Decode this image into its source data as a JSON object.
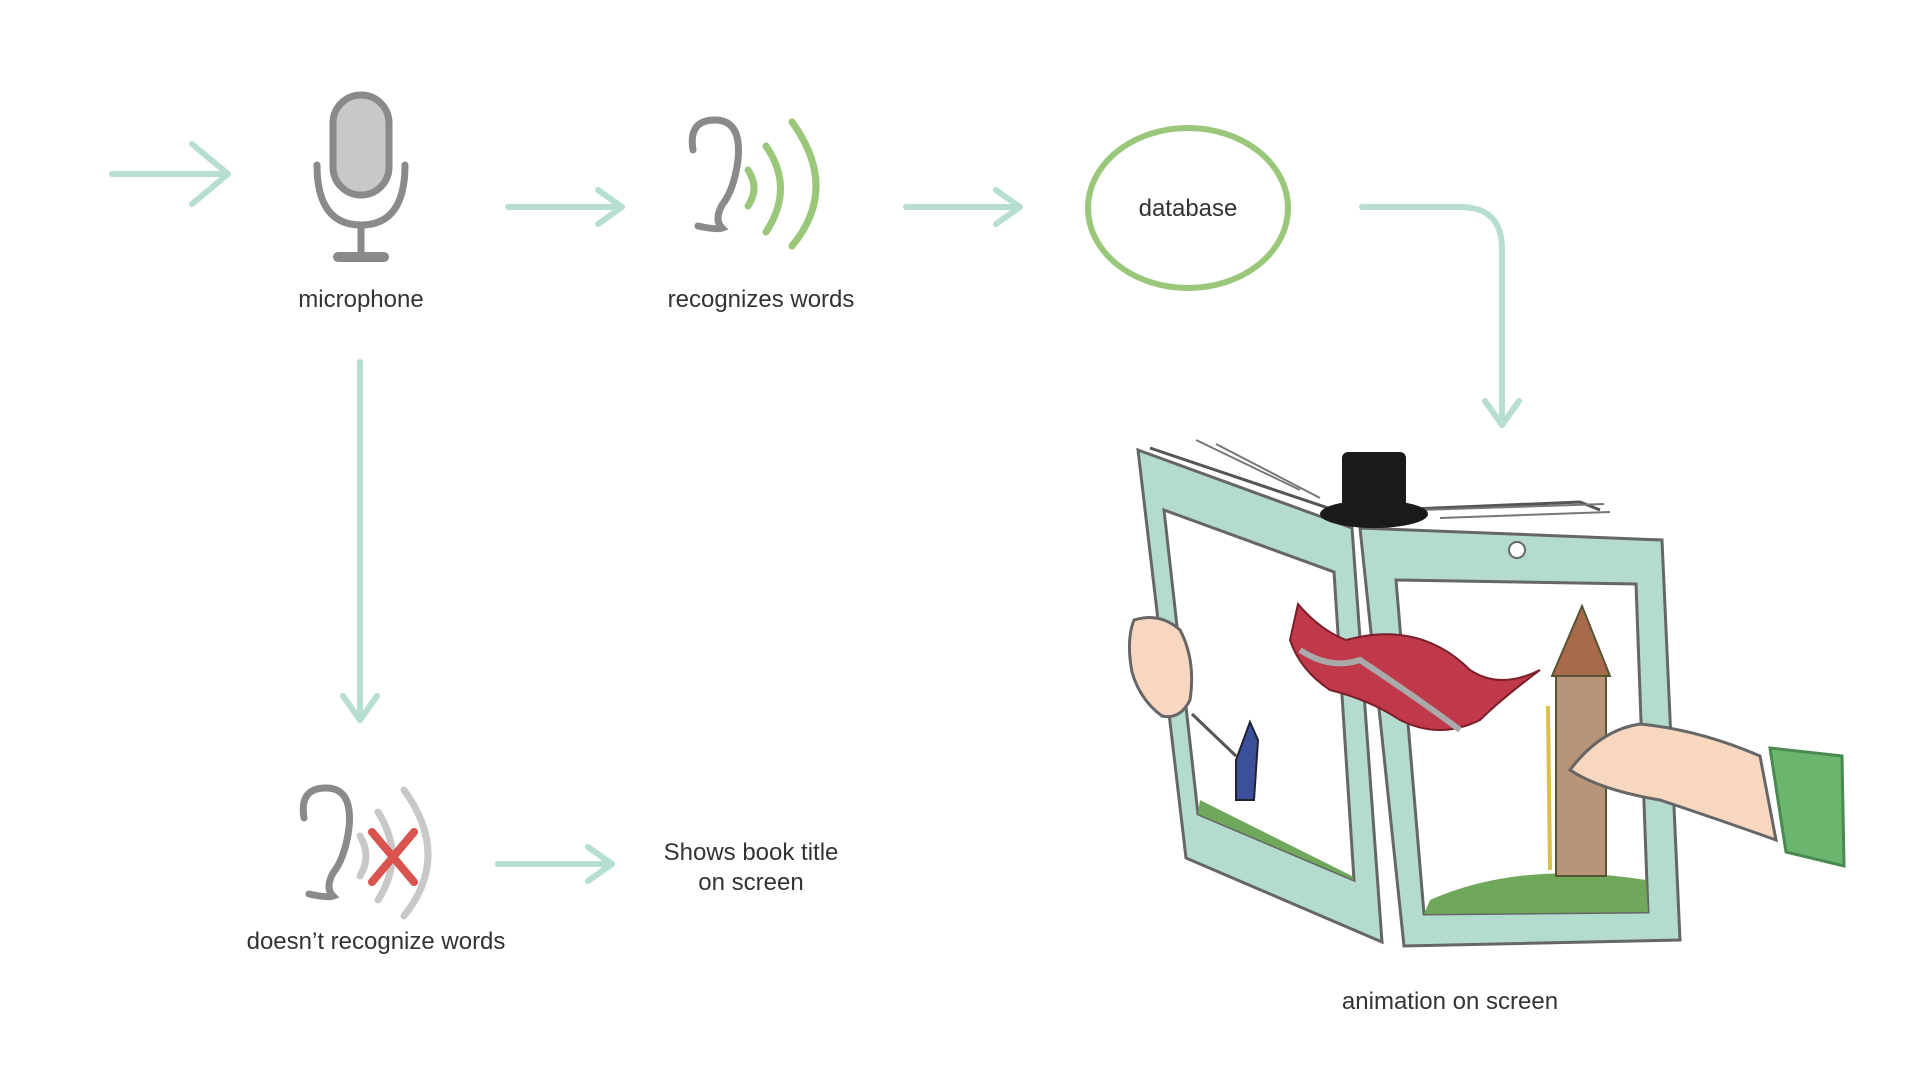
{
  "labels": {
    "microphone": "microphone",
    "recognizes": "recognizes words",
    "database": "database",
    "not_recognize": "doesn’t recognize words",
    "shows_title_line1": "Shows book title",
    "shows_title_line2": "on screen",
    "animation": "animation on screen"
  },
  "colors": {
    "arrow": "#b7ded3",
    "icon_gray": "#8a8a8a",
    "wave_green": "#9bc77a",
    "wave_gray": "#c8c8c8",
    "cross_red": "#d9534f",
    "book_frame": "#b3dccf",
    "hat": "#1a1a1a",
    "skin": "#f7d7c0",
    "sleeve": "#6bb56f",
    "dragon": "#c0394a",
    "tower": "#b89478"
  },
  "icons": [
    "microphone-icon",
    "ear-icon",
    "sound-waves-icon",
    "cross-icon",
    "book-tablet-illustration"
  ]
}
